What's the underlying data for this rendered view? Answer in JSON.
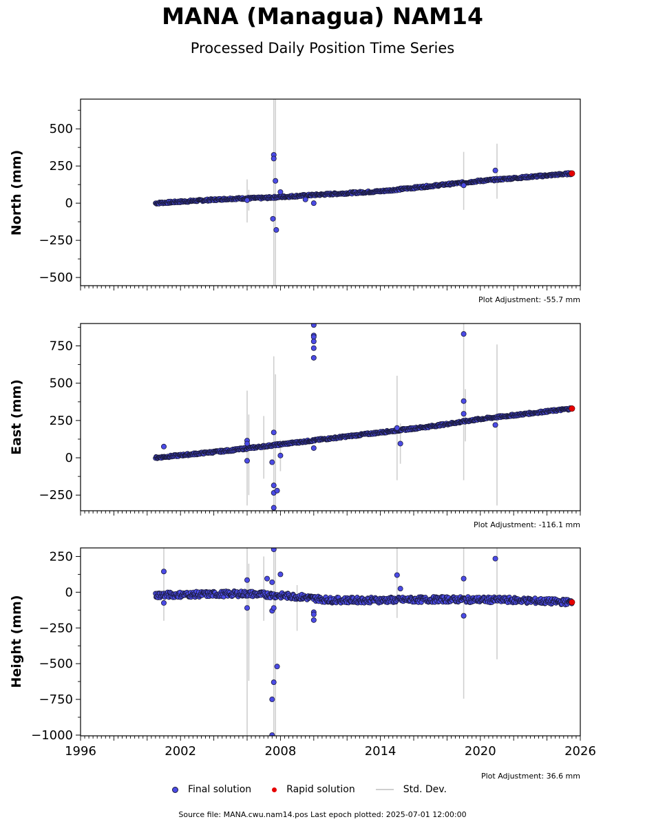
{
  "title": "MANA (Managua) NAM14",
  "subtitle": "Processed Daily Position Time Series",
  "legend": {
    "final": "Final solution",
    "rapid": "Rapid solution",
    "std": "Std. Dev."
  },
  "colors": {
    "final_fill": "#4b4be6",
    "final_edge": "#1a1a3a",
    "rapid": "#e60000",
    "std_dev": "#cfcfcf"
  },
  "source_line": "Source file: MANA.cwu.nam14.pos  Last epoch plotted: 2025-07-01 12:00:00",
  "chart_data": [
    {
      "type": "scatter",
      "ylabel": "North (mm)",
      "adjustment": "Plot Adjustment: -55.7 mm",
      "xlim": [
        1996,
        2026
      ],
      "ylim": [
        -555,
        700
      ],
      "yticks": [
        500,
        250,
        0,
        -250,
        -500
      ],
      "ytick_labels": [
        "500",
        "250",
        "0",
        "−250",
        "−500"
      ],
      "trend": [
        [
          2000.5,
          0
        ],
        [
          2005.0,
          30
        ],
        [
          2007.0,
          35
        ],
        [
          2010.0,
          55
        ],
        [
          2014.0,
          80
        ],
        [
          2017.0,
          115
        ],
        [
          2020.0,
          150
        ],
        [
          2025.5,
          200
        ]
      ],
      "outliers": [
        [
          2007.6,
          325
        ],
        [
          2007.6,
          300
        ],
        [
          2007.7,
          150
        ],
        [
          2007.55,
          -105
        ],
        [
          2007.75,
          -180
        ],
        [
          2020.9,
          220
        ],
        [
          2010.0,
          0
        ],
        [
          2009.5,
          25
        ],
        [
          2019.0,
          120
        ],
        [
          2006.0,
          20
        ],
        [
          2008.0,
          75
        ]
      ],
      "rapid": [
        [
          2025.5,
          200
        ]
      ],
      "errorbars": [
        [
          2007.6,
          -560,
          700
        ],
        [
          2007.7,
          -560,
          700
        ],
        [
          2019.0,
          -45,
          345
        ],
        [
          2021.0,
          30,
          400
        ],
        [
          2006.0,
          -130,
          160
        ],
        [
          2006.1,
          -50,
          90
        ]
      ]
    },
    {
      "type": "scatter",
      "ylabel": "East (mm)",
      "adjustment": "Plot Adjustment: -116.1 mm",
      "xlim": [
        1996,
        2026
      ],
      "ylim": [
        -355,
        900
      ],
      "yticks": [
        750,
        500,
        250,
        0,
        -250
      ],
      "ytick_labels": [
        "750",
        "500",
        "250",
        "0",
        "−250"
      ],
      "trend": [
        [
          2000.5,
          0
        ],
        [
          2005.0,
          50
        ],
        [
          2008.0,
          90
        ],
        [
          2011.0,
          130
        ],
        [
          2014.0,
          170
        ],
        [
          2017.0,
          210
        ],
        [
          2020.0,
          260
        ],
        [
          2025.5,
          330
        ]
      ],
      "outliers": [
        [
          2010.0,
          890
        ],
        [
          2010.0,
          820
        ],
        [
          2010.0,
          810
        ],
        [
          2010.0,
          780
        ],
        [
          2010.0,
          735
        ],
        [
          2010.0,
          670
        ],
        [
          2019.0,
          830
        ],
        [
          2019.0,
          380
        ],
        [
          2019.0,
          295
        ],
        [
          2007.6,
          170
        ],
        [
          2007.5,
          -30
        ],
        [
          2007.6,
          -185
        ],
        [
          2007.6,
          -235
        ],
        [
          2007.8,
          -220
        ],
        [
          2007.6,
          -335
        ],
        [
          2006.0,
          -20
        ],
        [
          2006.0,
          115
        ],
        [
          2006.0,
          95
        ],
        [
          2015.0,
          200
        ],
        [
          2015.2,
          95
        ],
        [
          2010.0,
          65
        ],
        [
          2020.9,
          220
        ],
        [
          2001.0,
          75
        ],
        [
          2008.0,
          15
        ]
      ],
      "rapid": [
        [
          2025.5,
          330
        ]
      ],
      "errorbars": [
        [
          2007.6,
          -355,
          680
        ],
        [
          2007.7,
          -355,
          560
        ],
        [
          2006.0,
          -320,
          450
        ],
        [
          2006.1,
          -250,
          290
        ],
        [
          2015.0,
          -150,
          550
        ],
        [
          2015.2,
          -40,
          230
        ],
        [
          2019.0,
          -150,
          900
        ],
        [
          2019.1,
          110,
          460
        ],
        [
          2021.0,
          -320,
          760
        ],
        [
          2007.0,
          -140,
          280
        ],
        [
          2008.0,
          -90,
          120
        ]
      ]
    },
    {
      "type": "scatter",
      "ylabel": "Height (mm)",
      "adjustment": "Plot Adjustment: 36.6 mm",
      "xlim": [
        1996,
        2026
      ],
      "ylim": [
        -1005,
        310
      ],
      "yticks": [
        250,
        0,
        -250,
        -500,
        -750,
        -1000
      ],
      "ytick_labels": [
        "250",
        "0",
        "−250",
        "−500",
        "−750",
        "−1000"
      ],
      "xticks": [
        1996,
        2002,
        2008,
        2014,
        2020,
        2026
      ],
      "xtick_labels": [
        "1996",
        "2002",
        "2008",
        "2014",
        "2020",
        "2026"
      ],
      "trend": [
        [
          2000.5,
          -20
        ],
        [
          2003.0,
          -15
        ],
        [
          2006.0,
          -10
        ],
        [
          2009.0,
          -30
        ],
        [
          2011.0,
          -55
        ],
        [
          2014.0,
          -55
        ],
        [
          2018.0,
          -50
        ],
        [
          2022.0,
          -55
        ],
        [
          2025.5,
          -70
        ]
      ],
      "outliers": [
        [
          2001.0,
          145
        ],
        [
          2007.6,
          300
        ],
        [
          2007.5,
          70
        ],
        [
          2007.5,
          -130
        ],
        [
          2007.6,
          -110
        ],
        [
          2007.8,
          -520
        ],
        [
          2007.6,
          -630
        ],
        [
          2007.5,
          -750
        ],
        [
          2007.5,
          -1000
        ],
        [
          2008.0,
          125
        ],
        [
          2007.2,
          95
        ],
        [
          2010.0,
          -140
        ],
        [
          2010.0,
          -155
        ],
        [
          2010.0,
          -195
        ],
        [
          2015.0,
          120
        ],
        [
          2015.2,
          25
        ],
        [
          2019.0,
          95
        ],
        [
          2019.0,
          -165
        ],
        [
          2020.9,
          235
        ],
        [
          2006.0,
          85
        ],
        [
          2006.0,
          -110
        ],
        [
          2001.0,
          -75
        ]
      ],
      "rapid": [
        [
          2025.5,
          -70
        ]
      ],
      "errorbars": [
        [
          2006.0,
          -1005,
          310
        ],
        [
          2006.1,
          -620,
          200
        ],
        [
          2007.6,
          -1005,
          310
        ],
        [
          2007.7,
          -1005,
          310
        ],
        [
          2007.0,
          -200,
          250
        ],
        [
          2015.0,
          -180,
          310
        ],
        [
          2019.0,
          -745,
          310
        ],
        [
          2021.0,
          -470,
          310
        ],
        [
          2001.0,
          -200,
          310
        ],
        [
          2009.0,
          -270,
          50
        ]
      ]
    }
  ]
}
